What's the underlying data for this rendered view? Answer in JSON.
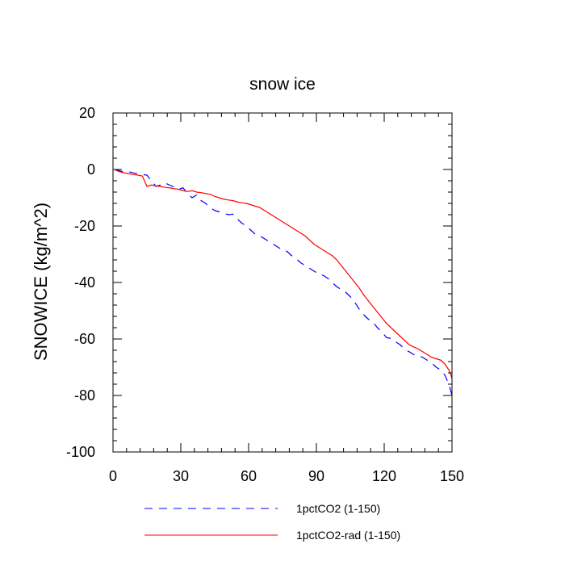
{
  "chart_data": {
    "type": "line",
    "title": "snow ice",
    "xlabel": "",
    "ylabel": "SNOWICE  (kg/m^2)",
    "xlim": [
      0,
      150
    ],
    "ylim": [
      -100,
      20
    ],
    "xticks": [
      0,
      30,
      60,
      90,
      120,
      150
    ],
    "xtick_labels": [
      "0",
      "30",
      "60",
      "90",
      "120",
      "150"
    ],
    "yticks": [
      20,
      0,
      -20,
      -40,
      -60,
      -80,
      -100
    ],
    "ytick_labels": [
      "20",
      "0",
      "-20",
      "-40",
      "-60",
      "-80",
      "-100"
    ],
    "grid": false,
    "legend_position": "bottom",
    "series": [
      {
        "name": "1pctCO2 (1-150)",
        "color": "#0000ff",
        "style": "dashed",
        "x": [
          1,
          3,
          5,
          7,
          9,
          11,
          13,
          15,
          17,
          19,
          21,
          23,
          25,
          27,
          29,
          31,
          33,
          35,
          37,
          39,
          41,
          43,
          45,
          47,
          49,
          51,
          53,
          55,
          57,
          59,
          61,
          63,
          65,
          67,
          69,
          71,
          73,
          75,
          77,
          79,
          81,
          83,
          85,
          87,
          89,
          91,
          93,
          95,
          97,
          99,
          101,
          103,
          105,
          107,
          109,
          111,
          113,
          115,
          117,
          119,
          121,
          123,
          125,
          127,
          129,
          131,
          133,
          135,
          137,
          139,
          141,
          143,
          145,
          147,
          149,
          150
        ],
        "y": [
          0.0,
          -0.5,
          -1.0,
          -0.8,
          -1.2,
          -1.5,
          -1.8,
          -2.0,
          -4.0,
          -6.0,
          -5.5,
          -4.8,
          -5.5,
          -6.2,
          -7.0,
          -6.5,
          -8.5,
          -10.0,
          -9.0,
          -11.0,
          -12.0,
          -13.5,
          -14.5,
          -15.0,
          -15.5,
          -16.0,
          -15.8,
          -17.5,
          -19.0,
          -20.0,
          -21.5,
          -23.0,
          -23.5,
          -24.5,
          -25.5,
          -26.5,
          -27.5,
          -28.5,
          -29.0,
          -30.5,
          -31.5,
          -33.0,
          -34.0,
          -35.0,
          -36.0,
          -37.0,
          -37.5,
          -38.5,
          -40.0,
          -41.5,
          -42.5,
          -43.5,
          -45.0,
          -47.0,
          -49.5,
          -51.5,
          -53.0,
          -54.0,
          -56.0,
          -57.5,
          -59.5,
          -59.8,
          -61.0,
          -62.0,
          -63.5,
          -64.5,
          -65.5,
          -65.8,
          -66.5,
          -67.5,
          -68.5,
          -70.0,
          -71.0,
          -73.0,
          -77.0,
          -80.0
        ]
      },
      {
        "name": "1pctCO2-rad (1-150)",
        "color": "#ff0000",
        "style": "solid",
        "x": [
          1,
          3,
          5,
          7,
          9,
          11,
          13,
          15,
          17,
          19,
          21,
          23,
          25,
          27,
          29,
          31,
          33,
          35,
          37,
          39,
          41,
          43,
          45,
          47,
          49,
          51,
          53,
          55,
          57,
          59,
          61,
          63,
          65,
          67,
          69,
          71,
          73,
          75,
          77,
          79,
          81,
          83,
          85,
          87,
          89,
          91,
          93,
          95,
          97,
          99,
          101,
          103,
          105,
          107,
          109,
          111,
          113,
          115,
          117,
          119,
          121,
          123,
          125,
          127,
          129,
          131,
          133,
          135,
          137,
          139,
          141,
          143,
          145,
          147,
          149,
          150
        ],
        "y": [
          -0.2,
          -0.8,
          -1.2,
          -1.5,
          -1.8,
          -2.0,
          -2.3,
          -6.0,
          -5.5,
          -5.8,
          -6.0,
          -6.3,
          -6.5,
          -6.8,
          -7.0,
          -7.5,
          -7.8,
          -7.5,
          -8.0,
          -8.2,
          -8.5,
          -8.8,
          -9.5,
          -10.0,
          -10.5,
          -10.8,
          -11.0,
          -11.5,
          -11.8,
          -12.0,
          -12.5,
          -13.0,
          -13.5,
          -14.5,
          -15.5,
          -16.5,
          -17.5,
          -18.5,
          -19.5,
          -20.5,
          -21.5,
          -22.5,
          -23.5,
          -25.0,
          -26.5,
          -27.5,
          -28.5,
          -29.5,
          -30.5,
          -32.0,
          -34.0,
          -36.0,
          -38.0,
          -40.0,
          -42.0,
          -44.5,
          -46.5,
          -48.5,
          -50.5,
          -52.5,
          -54.5,
          -56.0,
          -57.5,
          -59.0,
          -60.5,
          -62.0,
          -62.8,
          -63.5,
          -64.5,
          -65.5,
          -66.5,
          -67.0,
          -67.5,
          -69.0,
          -71.5,
          -74.0
        ]
      }
    ]
  }
}
